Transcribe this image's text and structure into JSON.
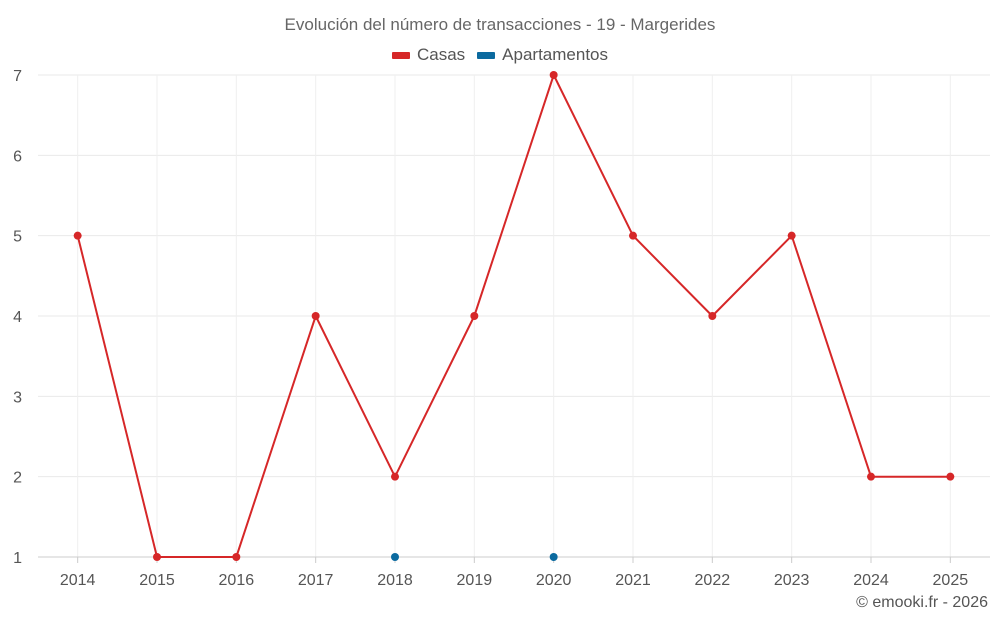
{
  "chart_data": {
    "type": "line",
    "title": "Evolución del número de transacciones - 19 - Margerides",
    "xlabel": "",
    "ylabel": "",
    "categories": [
      "2014",
      "2015",
      "2016",
      "2017",
      "2018",
      "2019",
      "2020",
      "2021",
      "2022",
      "2023",
      "2024",
      "2025"
    ],
    "ylim": [
      1,
      7
    ],
    "yticks": [
      "1",
      "2",
      "3",
      "4",
      "5",
      "6",
      "7"
    ],
    "grid": true,
    "legend_position": "top-center",
    "series": [
      {
        "name": "Casas",
        "color": "#d62728",
        "values": [
          5,
          1,
          1,
          4,
          2,
          4,
          7,
          5,
          4,
          5,
          2,
          2
        ]
      },
      {
        "name": "Apartamentos",
        "color": "#0b6a9f",
        "values": [
          null,
          null,
          null,
          null,
          1,
          null,
          1,
          null,
          null,
          null,
          null,
          null
        ]
      }
    ]
  },
  "credit": "© emooki.fr - 2026"
}
